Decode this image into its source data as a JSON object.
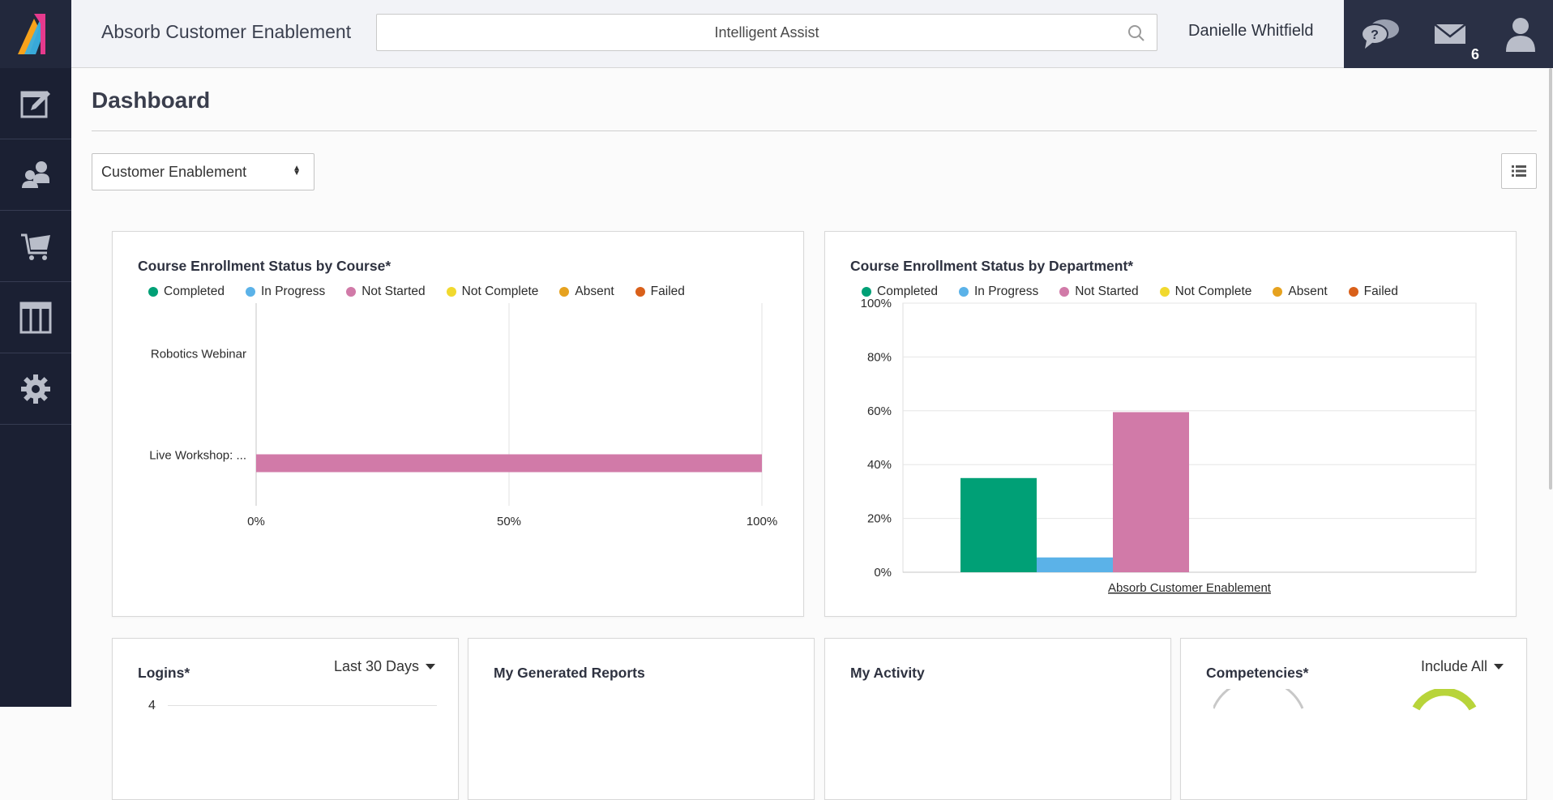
{
  "header": {
    "app_title": "Absorb Customer Enablement",
    "search_placeholder": "Intelligent Assist",
    "user_name": "Danielle Whitfield",
    "message_count": "6"
  },
  "sidebar": {
    "items": [
      {
        "name": "courses",
        "icon": "edit-icon"
      },
      {
        "name": "users",
        "icon": "users-icon"
      },
      {
        "name": "ecommerce",
        "icon": "cart-icon"
      },
      {
        "name": "reports",
        "icon": "columns-icon"
      },
      {
        "name": "settings",
        "icon": "gear-icon"
      }
    ]
  },
  "page": {
    "title": "Dashboard",
    "dashboard_select": "Customer Enablement"
  },
  "colors": {
    "completed": "#00a076",
    "in_progress": "#5bb2e8",
    "not_started": "#d17aa8",
    "not_complete": "#f1d92e",
    "absent": "#e6a21f",
    "failed": "#d9601a"
  },
  "legend": [
    "Completed",
    "In Progress",
    "Not Started",
    "Not Complete",
    "Absent",
    "Failed"
  ],
  "chart_data": [
    {
      "type": "bar",
      "orientation": "horizontal",
      "stacked": true,
      "title": "Course Enrollment Status by Course*",
      "categories": [
        "Robotics Webinar",
        "Live Workshop: ..."
      ],
      "series": [
        {
          "name": "Completed",
          "values": [
            0,
            0
          ]
        },
        {
          "name": "In Progress",
          "values": [
            0,
            0
          ]
        },
        {
          "name": "Not Started",
          "values": [
            0,
            100
          ]
        },
        {
          "name": "Not Complete",
          "values": [
            0,
            0
          ]
        },
        {
          "name": "Absent",
          "values": [
            0,
            0
          ]
        },
        {
          "name": "Failed",
          "values": [
            0,
            0
          ]
        }
      ],
      "xlim": [
        0,
        100
      ],
      "xticks": [
        "0%",
        "50%",
        "100%"
      ],
      "grid": true
    },
    {
      "type": "bar",
      "orientation": "vertical",
      "title": "Course Enrollment Status by Department*",
      "categories": [
        "Absorb Customer Enablement"
      ],
      "series": [
        {
          "name": "Completed",
          "values": [
            35
          ]
        },
        {
          "name": "In Progress",
          "values": [
            5.5
          ]
        },
        {
          "name": "Not Started",
          "values": [
            59.5
          ]
        },
        {
          "name": "Not Complete",
          "values": [
            0
          ]
        },
        {
          "name": "Absent",
          "values": [
            0
          ]
        },
        {
          "name": "Failed",
          "values": [
            0
          ]
        }
      ],
      "ylim": [
        0,
        100
      ],
      "yticks": [
        "0%",
        "20%",
        "40%",
        "60%",
        "80%",
        "100%"
      ],
      "grid": true
    }
  ],
  "cards": {
    "logins": {
      "title": "Logins*",
      "filter": "Last 30 Days",
      "first_tick": "4"
    },
    "reports": {
      "title": "My Generated Reports"
    },
    "activity": {
      "title": "My Activity"
    },
    "competencies": {
      "title": "Competencies*",
      "filter": "Include All"
    }
  }
}
